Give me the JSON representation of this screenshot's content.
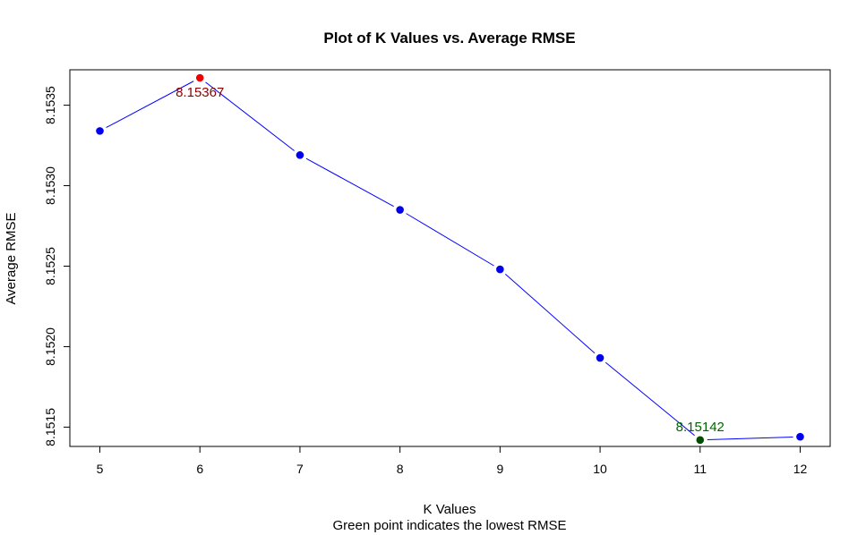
{
  "chart_data": {
    "type": "line",
    "title": "Plot of K Values vs. Average RMSE",
    "xlabel": "K Values",
    "subtitle": "Green point indicates the lowest RMSE",
    "ylabel": "Average RMSE",
    "x": [
      5,
      6,
      7,
      8,
      9,
      10,
      11,
      12
    ],
    "y": [
      8.15334,
      8.15367,
      8.15319,
      8.15285,
      8.15248,
      8.15193,
      8.15142,
      8.15144
    ],
    "xlim": [
      4.7,
      12.3
    ],
    "ylim": [
      8.15138,
      8.15372
    ],
    "x_ticks": [
      5,
      6,
      7,
      8,
      9,
      10,
      11,
      12
    ],
    "y_ticks": [
      {
        "value": 8.1515,
        "label": "8.1515"
      },
      {
        "value": 8.152,
        "label": "8.1520"
      },
      {
        "value": 8.1525,
        "label": "8.1525"
      },
      {
        "value": 8.153,
        "label": "8.1530"
      },
      {
        "value": 8.1535,
        "label": "8.1535"
      }
    ],
    "grid": false,
    "line_color": "#0000ff",
    "point_color": "#0000ee",
    "highlight_max": {
      "x": 6,
      "y": 8.15367,
      "label": "8.15367",
      "color": "#ee0000",
      "text_color": "#8b0000"
    },
    "highlight_min": {
      "x": 11,
      "y": 8.15142,
      "label": "8.15142",
      "color": "#004d00",
      "text_color": "#006400"
    }
  }
}
